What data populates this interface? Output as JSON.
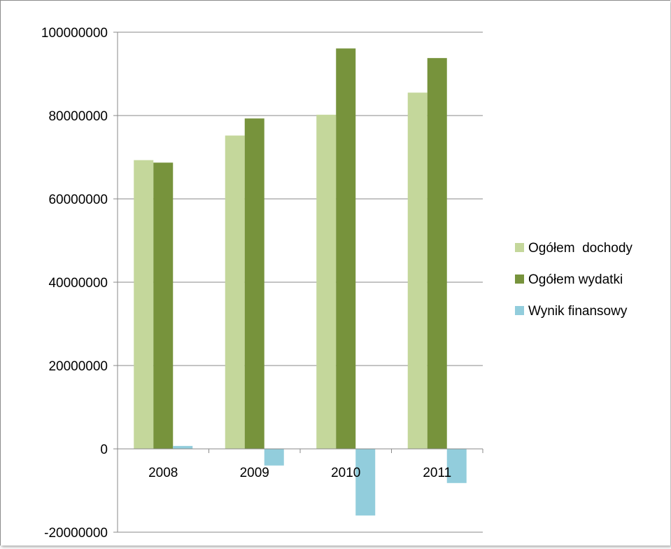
{
  "chart_data": {
    "type": "bar",
    "categories": [
      "2008",
      "2009",
      "2010",
      "2011"
    ],
    "series": [
      {
        "name": "Ogółem  dochody",
        "color": "#c4d79b",
        "values": [
          69300000,
          75200000,
          80200000,
          85500000
        ]
      },
      {
        "name": "Ogółem wydatki",
        "color": "#77933c",
        "values": [
          68700000,
          79300000,
          96100000,
          93800000
        ]
      },
      {
        "name": "Wynik finansowy",
        "color": "#92cddc",
        "values": [
          700000,
          -4000000,
          -16000000,
          -8200000
        ]
      }
    ],
    "ylim": [
      -20000000,
      100000000
    ],
    "yticks": [
      100000000,
      80000000,
      60000000,
      40000000,
      20000000,
      0,
      -20000000
    ],
    "ytick_labels": [
      "100000000",
      "80000000",
      "60000000",
      "40000000",
      "20000000",
      "0",
      "-20000000"
    ],
    "grid": true,
    "legend_position": "right",
    "title": "",
    "xlabel": "",
    "ylabel": ""
  }
}
